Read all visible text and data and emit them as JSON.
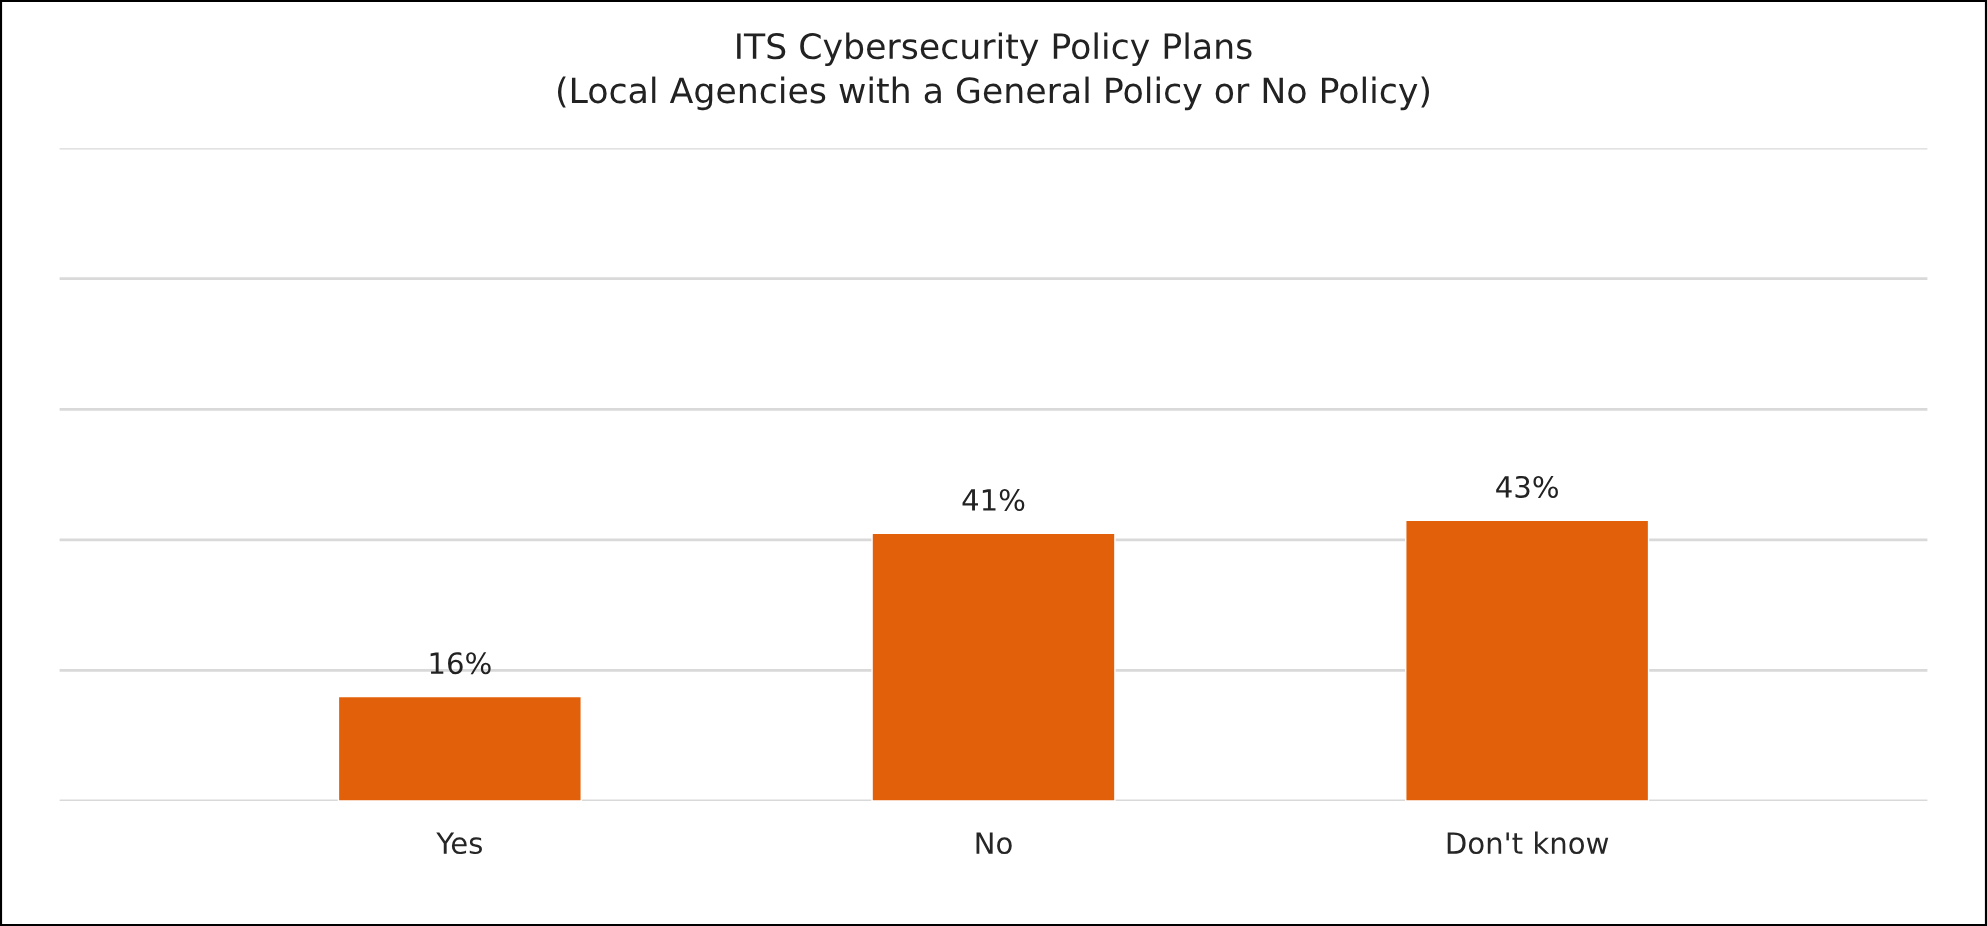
{
  "chart_data": {
    "type": "bar",
    "title": "ITS Cybersecurity Policy Plans\n(Local Agencies with a General Policy or No Policy)",
    "categories": [
      "Yes",
      "No",
      "Don't know"
    ],
    "series": [
      {
        "color": "#e3600b",
        "values": [
          16,
          41,
          43
        ],
        "value_labels": [
          "16%",
          "41%",
          "43%"
        ]
      }
    ],
    "ylim": [
      0,
      100
    ],
    "yticks": [
      {
        "value": 0,
        "label": null
      },
      {
        "value": 20,
        "label": null
      },
      {
        "value": 40,
        "label": null
      },
      {
        "value": 60,
        "label": null
      },
      {
        "value": 80,
        "label": null
      },
      {
        "value": 100,
        "label": null
      }
    ],
    "grid": "y",
    "tick_labels": "x"
  }
}
